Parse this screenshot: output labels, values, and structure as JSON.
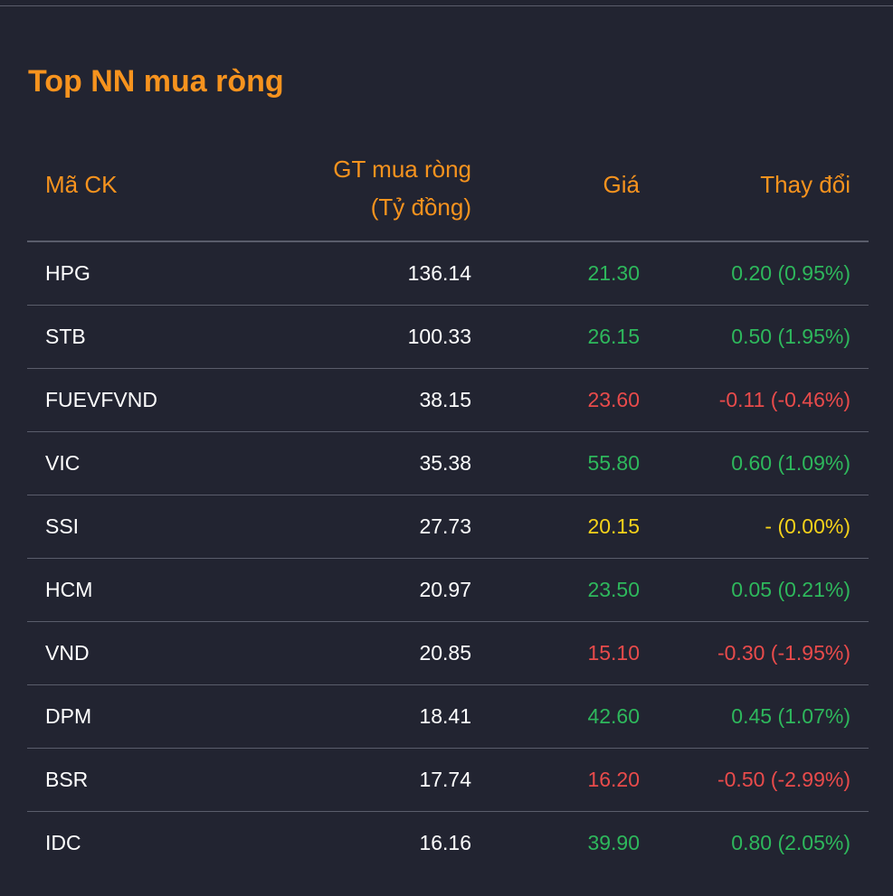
{
  "title": "Top NN mua ròng",
  "colors": {
    "background": "#222431",
    "accent": "#f7931e",
    "up": "#2eb85c",
    "down": "#e94b4b",
    "ref": "#f5d21a",
    "text": "#ffffff",
    "divider": "#5a5d6b"
  },
  "headers": {
    "code": "Mã CK",
    "value_line1": "GT mua ròng",
    "value_line2": "(Tỷ đồng)",
    "price": "Giá",
    "change": "Thay đổi"
  },
  "rows": [
    {
      "code": "HPG",
      "value": "136.14",
      "price": "21.30",
      "change": "0.20 (0.95%)",
      "status": "up"
    },
    {
      "code": "STB",
      "value": "100.33",
      "price": "26.15",
      "change": "0.50 (1.95%)",
      "status": "up"
    },
    {
      "code": "FUEVFVND",
      "value": "38.15",
      "price": "23.60",
      "change": "-0.11 (-0.46%)",
      "status": "down"
    },
    {
      "code": "VIC",
      "value": "35.38",
      "price": "55.80",
      "change": "0.60 (1.09%)",
      "status": "up"
    },
    {
      "code": "SSI",
      "value": "27.73",
      "price": "20.15",
      "change": "- (0.00%)",
      "status": "ref"
    },
    {
      "code": "HCM",
      "value": "20.97",
      "price": "23.50",
      "change": "0.05 (0.21%)",
      "status": "up"
    },
    {
      "code": "VND",
      "value": "20.85",
      "price": "15.10",
      "change": "-0.30 (-1.95%)",
      "status": "down"
    },
    {
      "code": "DPM",
      "value": "18.41",
      "price": "42.60",
      "change": "0.45 (1.07%)",
      "status": "up"
    },
    {
      "code": "BSR",
      "value": "17.74",
      "price": "16.20",
      "change": "-0.50 (-2.99%)",
      "status": "down"
    },
    {
      "code": "IDC",
      "value": "16.16",
      "price": "39.90",
      "change": "0.80 (2.05%)",
      "status": "up"
    }
  ]
}
